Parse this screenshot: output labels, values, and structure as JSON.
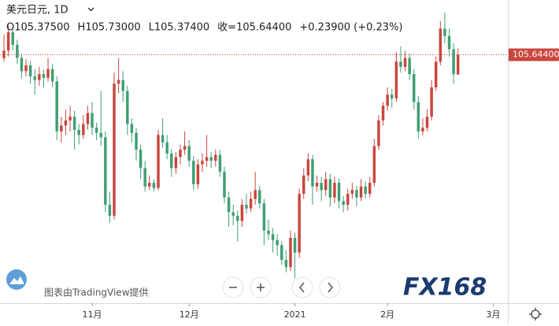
{
  "chart_data": {
    "type": "candlestick",
    "symbol": "美元日元, 1D",
    "ohlc_labels": [
      "O105.37500",
      "H105.73000",
      "L105.37400",
      "收=105.64400",
      "+0.23900 (+0.23%)"
    ],
    "watermark": "图表由TradingView提供",
    "logo": "FX168",
    "up_color": "#c9463d",
    "down_color": "#3f9f74",
    "price_line": {
      "value": 105.644,
      "label": "105.64400",
      "color": "#c9463d"
    },
    "ylim": [
      102.26,
      106.39
    ],
    "xlim": [
      -0.9,
      114.3
    ],
    "xticks": [
      {
        "value": 20,
        "label": "11月"
      },
      {
        "value": 42,
        "label": "12月"
      },
      {
        "value": 66,
        "label": "2021"
      },
      {
        "value": 87,
        "label": "2月"
      },
      {
        "value": 111,
        "label": "3月"
      }
    ],
    "candles": [
      [
        105.6,
        105.92,
        105.55,
        105.7
      ],
      [
        105.7,
        106.05,
        105.62,
        105.95
      ],
      [
        105.95,
        106.02,
        105.7,
        105.78
      ],
      [
        105.78,
        105.85,
        105.52,
        105.6
      ],
      [
        105.6,
        105.66,
        105.32,
        105.42
      ],
      [
        105.42,
        105.58,
        105.35,
        105.5
      ],
      [
        105.5,
        105.56,
        105.25,
        105.35
      ],
      [
        105.35,
        105.45,
        105.1,
        105.3
      ],
      [
        105.3,
        105.48,
        105.22,
        105.38
      ],
      [
        105.38,
        105.44,
        105.2,
        105.33
      ],
      [
        105.33,
        105.6,
        105.28,
        105.45
      ],
      [
        105.45,
        105.52,
        105.2,
        105.28
      ],
      [
        105.28,
        105.35,
        104.48,
        104.6
      ],
      [
        104.6,
        104.8,
        104.45,
        104.68
      ],
      [
        104.68,
        104.9,
        104.55,
        104.75
      ],
      [
        104.75,
        104.95,
        104.6,
        104.8
      ],
      [
        104.8,
        104.88,
        104.35,
        104.62
      ],
      [
        104.62,
        104.7,
        104.42,
        104.55
      ],
      [
        104.55,
        104.82,
        104.5,
        104.7
      ],
      [
        104.7,
        104.95,
        104.62,
        104.85
      ],
      [
        104.85,
        105.0,
        104.55,
        104.65
      ],
      [
        104.65,
        104.72,
        104.48,
        104.58
      ],
      [
        104.58,
        105.15,
        104.4,
        104.52
      ],
      [
        104.52,
        104.6,
        103.5,
        103.6
      ],
      [
        103.6,
        103.78,
        103.35,
        103.45
      ],
      [
        103.45,
        105.4,
        103.4,
        105.25
      ],
      [
        105.25,
        105.6,
        105.12,
        105.3
      ],
      [
        105.3,
        105.42,
        105.0,
        105.15
      ],
      [
        105.15,
        105.22,
        104.55,
        104.7
      ],
      [
        104.7,
        104.78,
        104.45,
        104.58
      ],
      [
        104.58,
        104.65,
        104.2,
        104.35
      ],
      [
        104.35,
        104.42,
        103.95,
        104.1
      ],
      [
        104.1,
        104.2,
        103.78,
        103.85
      ],
      [
        103.85,
        104.0,
        103.8,
        103.9
      ],
      [
        103.9,
        103.95,
        103.78,
        103.83
      ],
      [
        103.83,
        104.62,
        103.8,
        104.55
      ],
      [
        104.55,
        104.78,
        104.38,
        104.45
      ],
      [
        104.45,
        104.55,
        104.22,
        104.3
      ],
      [
        104.3,
        104.36,
        103.98,
        104.1
      ],
      [
        104.1,
        104.32,
        104.02,
        104.25
      ],
      [
        104.25,
        104.42,
        104.15,
        104.35
      ],
      [
        104.35,
        104.6,
        104.28,
        104.4
      ],
      [
        104.4,
        104.48,
        104.12,
        104.2
      ],
      [
        104.2,
        104.26,
        103.8,
        103.88
      ],
      [
        103.88,
        104.22,
        103.82,
        104.15
      ],
      [
        104.15,
        104.3,
        104.05,
        104.2
      ],
      [
        104.2,
        104.55,
        104.12,
        104.25
      ],
      [
        104.25,
        104.32,
        104.1,
        104.2
      ],
      [
        104.2,
        104.35,
        104.12,
        104.28
      ],
      [
        104.28,
        104.35,
        103.98,
        104.05
      ],
      [
        104.05,
        104.12,
        103.62,
        103.7
      ],
      [
        103.7,
        103.78,
        103.3,
        103.5
      ],
      [
        103.5,
        103.6,
        103.32,
        103.45
      ],
      [
        103.45,
        103.52,
        103.1,
        103.38
      ],
      [
        103.38,
        103.68,
        103.3,
        103.6
      ],
      [
        103.6,
        103.75,
        103.48,
        103.55
      ],
      [
        103.55,
        103.78,
        103.5,
        103.68
      ],
      [
        103.68,
        104.05,
        103.6,
        103.8
      ],
      [
        103.8,
        103.86,
        103.55,
        103.62
      ],
      [
        103.62,
        103.68,
        103.05,
        103.25
      ],
      [
        103.25,
        103.4,
        103.12,
        103.2
      ],
      [
        103.2,
        103.28,
        102.95,
        103.12
      ],
      [
        103.12,
        103.2,
        102.9,
        103.05
      ],
      [
        103.05,
        103.1,
        102.78,
        102.85
      ],
      [
        102.85,
        102.98,
        102.68,
        102.75
      ],
      [
        102.75,
        103.25,
        102.7,
        103.15
      ],
      [
        103.15,
        103.22,
        102.6,
        102.95
      ],
      [
        102.95,
        103.82,
        102.88,
        103.75
      ],
      [
        103.75,
        104.1,
        103.68,
        104.0
      ],
      [
        104.0,
        104.3,
        103.92,
        104.22
      ],
      [
        104.22,
        104.28,
        103.6,
        103.85
      ],
      [
        103.85,
        104.0,
        103.78,
        103.9
      ],
      [
        103.9,
        103.98,
        103.65,
        103.8
      ],
      [
        103.8,
        104.05,
        103.72,
        103.95
      ],
      [
        103.95,
        104.02,
        103.58,
        103.7
      ],
      [
        103.7,
        103.98,
        103.62,
        103.9
      ],
      [
        103.9,
        103.96,
        103.55,
        103.65
      ],
      [
        103.65,
        103.72,
        103.5,
        103.6
      ],
      [
        103.6,
        103.82,
        103.52,
        103.75
      ],
      [
        103.75,
        103.9,
        103.68,
        103.8
      ],
      [
        103.8,
        103.86,
        103.58,
        103.7
      ],
      [
        103.7,
        103.95,
        103.65,
        103.85
      ],
      [
        103.85,
        103.92,
        103.68,
        103.75
      ],
      [
        103.75,
        103.98,
        103.7,
        103.9
      ],
      [
        103.9,
        104.5,
        103.85,
        104.4
      ],
      [
        104.4,
        104.82,
        104.35,
        104.75
      ],
      [
        104.75,
        105.0,
        104.68,
        104.95
      ],
      [
        104.95,
        105.2,
        104.88,
        105.1
      ],
      [
        105.1,
        105.18,
        104.92,
        105.05
      ],
      [
        105.05,
        105.68,
        105.0,
        105.55
      ],
      [
        105.55,
        105.76,
        105.4,
        105.48
      ],
      [
        105.48,
        105.7,
        105.42,
        105.6
      ],
      [
        105.6,
        105.66,
        105.3,
        105.38
      ],
      [
        105.38,
        105.45,
        104.9,
        105.0
      ],
      [
        105.0,
        105.08,
        104.5,
        104.6
      ],
      [
        104.6,
        104.78,
        104.55,
        104.65
      ],
      [
        104.65,
        104.9,
        104.6,
        104.8
      ],
      [
        104.8,
        105.3,
        104.75,
        105.2
      ],
      [
        105.2,
        105.62,
        105.15,
        105.55
      ],
      [
        105.55,
        106.1,
        105.5,
        106.0
      ],
      [
        106.0,
        106.22,
        105.8,
        105.9
      ],
      [
        105.9,
        106.0,
        105.62,
        105.72
      ],
      [
        105.72,
        105.8,
        105.25,
        105.38
      ],
      [
        105.375,
        105.73,
        105.374,
        105.644
      ]
    ]
  }
}
